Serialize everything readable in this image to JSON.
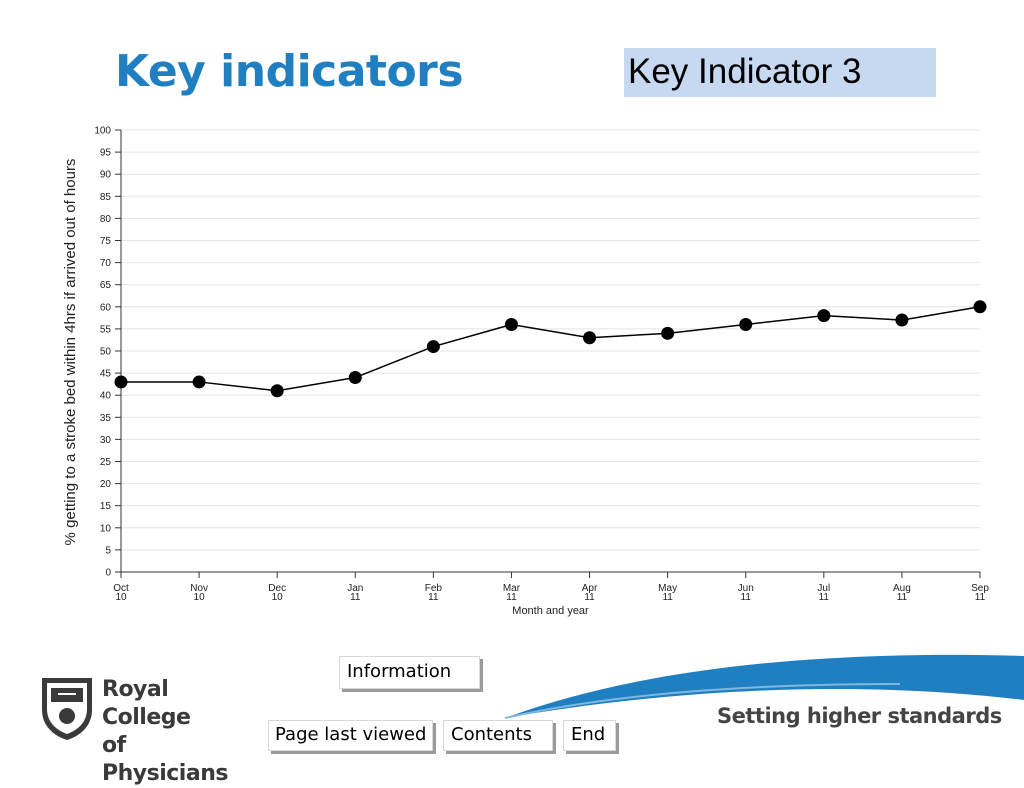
{
  "slide": {
    "title": "Key indicators",
    "indicator_label": "Key Indicator 3",
    "tagline": "Setting higher standards"
  },
  "logo": {
    "line1": "Royal College",
    "line2": "of Physicians"
  },
  "nav": {
    "information": "Information",
    "page_last_viewed": "Page last viewed",
    "contents": "Contents",
    "end": "End"
  },
  "colors": {
    "title": "#1f7fc1",
    "indicator_box": "#c6d9f1",
    "swoosh": "#1f7fc1",
    "series": "#000000"
  },
  "chart_data": {
    "type": "line",
    "x_ticks": [
      [
        "Oct",
        "10"
      ],
      [
        "Nov",
        "10"
      ],
      [
        "Dec",
        "10"
      ],
      [
        "Jan",
        "11"
      ],
      [
        "Feb",
        "11"
      ],
      [
        "Mar",
        "11"
      ],
      [
        "Apr",
        "11"
      ],
      [
        "May",
        "11"
      ],
      [
        "Jun",
        "11"
      ],
      [
        "Jul",
        "11"
      ],
      [
        "Aug",
        "11"
      ],
      [
        "Sep",
        "11"
      ]
    ],
    "values": [
      43,
      43,
      41,
      44,
      51,
      56,
      53,
      54,
      56,
      58,
      57,
      60
    ],
    "xlabel": "Month and year",
    "ylabel": "% getting to a stroke bed within 4hrs if arrived out of hours",
    "ylim": [
      0,
      100
    ],
    "ytick_step": 5,
    "grid": true,
    "legend": "none"
  }
}
